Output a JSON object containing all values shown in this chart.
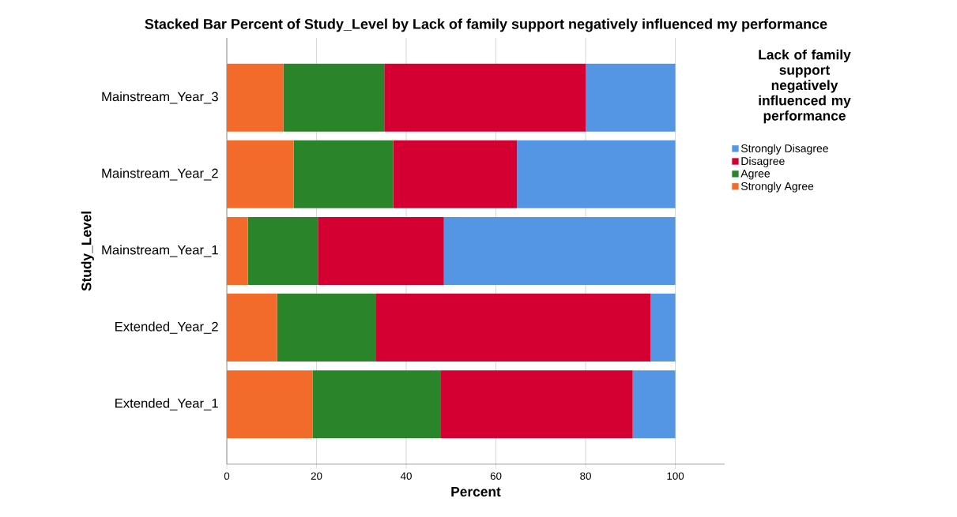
{
  "chart_data": {
    "type": "bar",
    "orientation": "horizontal",
    "stacked": true,
    "title": "Stacked Bar Percent of Study_Level by Lack of family support negatively influenced my performance",
    "xlabel": "Percent",
    "ylabel": "Study_Level",
    "legend_title": "Lack of family support negatively influenced my performance",
    "categories": [
      "Mainstream_Year_3",
      "Mainstream_Year_2",
      "Mainstream_Year_1",
      "Extended_Year_2",
      "Extended_Year_1"
    ],
    "series": [
      {
        "name": "Strongly Agree",
        "color": "#f26b2a",
        "values": [
          12.6,
          14.9,
          4.7,
          11.2,
          19.1
        ]
      },
      {
        "name": "Agree",
        "color": "#2a8429",
        "values": [
          22.5,
          22.2,
          15.6,
          22.1,
          28.5
        ]
      },
      {
        "name": "Disagree",
        "color": "#d50032",
        "values": [
          44.9,
          27.6,
          28.1,
          61.2,
          42.9
        ]
      },
      {
        "name": "Strongly Disagree",
        "color": "#5496e3",
        "values": [
          20.0,
          35.3,
          51.6,
          5.5,
          9.5
        ]
      }
    ],
    "xlim": [
      0,
      111
    ],
    "xticks": [
      0,
      20,
      40,
      60,
      80,
      100
    ],
    "grid": "x",
    "legend": "right"
  }
}
